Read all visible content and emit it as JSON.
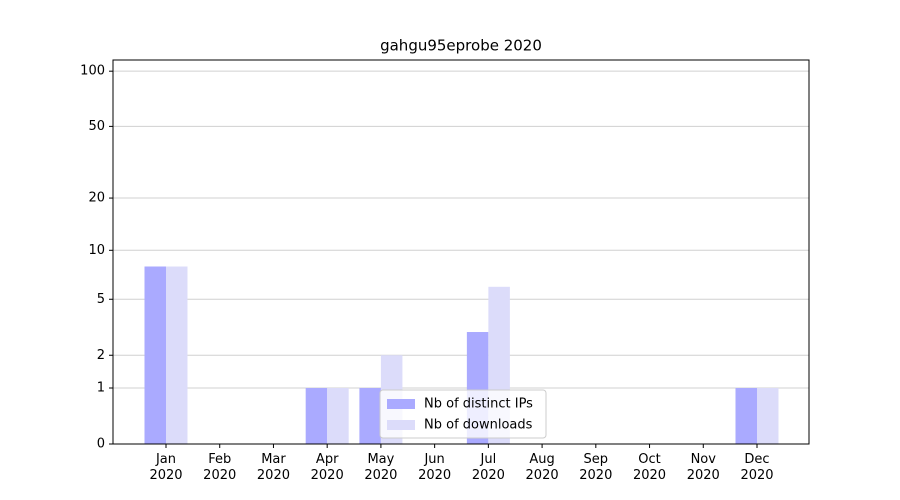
{
  "chart_data": {
    "type": "bar",
    "title": "gahgu95eprobe 2020",
    "categories": [
      "Jan\n2020",
      "Feb\n2020",
      "Mar\n2020",
      "Apr\n2020",
      "May\n2020",
      "Jun\n2020",
      "Jul\n2020",
      "Aug\n2020",
      "Sep\n2020",
      "Oct\n2020",
      "Nov\n2020",
      "Dec\n2020"
    ],
    "series": [
      {
        "name": "Nb of distinct IPs",
        "color": "#aaaaff",
        "values": [
          8,
          0,
          0,
          1,
          1,
          0,
          3,
          0,
          0,
          0,
          0,
          1
        ]
      },
      {
        "name": "Nb of downloads",
        "color": "#dcdcfa",
        "values": [
          8,
          0,
          0,
          1,
          2,
          0,
          6,
          0,
          0,
          0,
          0,
          1
        ]
      }
    ],
    "y_scale": "log1p",
    "ylim": [
      0,
      115
    ],
    "yticks": [
      0,
      1,
      2,
      5,
      10,
      20,
      50,
      100
    ],
    "grid": true,
    "legend": "lower center"
  }
}
